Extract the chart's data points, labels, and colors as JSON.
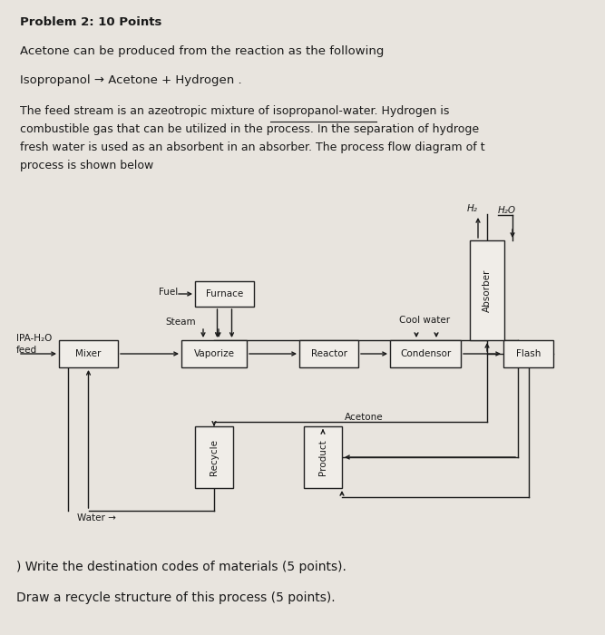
{
  "background_color": "#c8c4bc",
  "page_color": "#e8e4de",
  "text_color": "#1a1a1a",
  "title": "Problem 2: 10 Points",
  "line1": "Acetone can be produced from the reaction as the following",
  "line2": "Isopropanol → Acetone + Hydrogen .",
  "para1": "The feed stream is an azeotropic mixture of isopropanol-water. Hydrogen is",
  "para2": "combustible gas that can be utilized in the process. In the separation of hydroge",
  "para3": "fresh water is used as an absorbent in an absorber. The process flow diagram of t",
  "para4": "process is shown below",
  "footer1": ") Write the destination codes of materials (5 points).",
  "footer2": "Draw a recycle structure of this process (5 points).",
  "box_edge_color": "#222222",
  "box_face_color": "#f0ede8"
}
